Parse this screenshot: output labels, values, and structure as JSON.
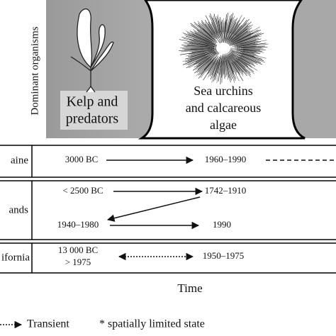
{
  "panel": {
    "axis_label": "Dominant organisms",
    "states": [
      {
        "lines": [
          "Kelp and",
          "predators"
        ]
      },
      {
        "lines": [
          "Sea urchins",
          "and calcareous",
          "algae"
        ]
      }
    ]
  },
  "rows": [
    {
      "label": "aine",
      "dates": [
        "3000 BC",
        "1960–1990"
      ]
    },
    {
      "label": "ands",
      "dates": [
        "< 2500 BC",
        "1742–1910",
        "1940–1980",
        "1990"
      ]
    },
    {
      "label": "ifornia",
      "dates": [
        "13 000 BC",
        "> 1975",
        "1950–1975"
      ]
    }
  ],
  "x_label": "Time",
  "legend": {
    "transient": "Transient",
    "note": "* spatially limited state"
  }
}
